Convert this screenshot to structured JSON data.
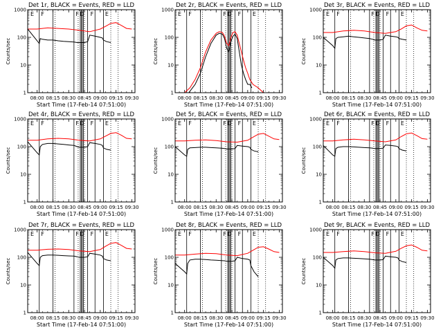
{
  "chart_data": {
    "type": "line",
    "layout": "3x3 grid",
    "shared": {
      "xlabel": "Start Time (17-Feb-14 07:51:00)",
      "ylabel": "Counts/sec",
      "x_ticks": [
        "08:00",
        "08:15",
        "08:30",
        "08:45",
        "09:00",
        "09:15",
        "09:30"
      ],
      "x_range": [
        "07:51",
        "09:33"
      ],
      "y_scale": "log",
      "y_range": [
        1,
        1000
      ],
      "y_ticks": [
        "1",
        "10",
        "100",
        "1000"
      ],
      "series_colors": {
        "events": "#000000",
        "lld": "#ff0000"
      },
      "solid_markers": [
        "08:02",
        "08:15",
        "08:35",
        "08:41",
        "08:42",
        "08:43",
        "08:44",
        "08:48",
        "08:55",
        "09:03"
      ],
      "dotted_markers": [
        "08:17",
        "08:39",
        "08:45",
        "09:10",
        "09:17"
      ],
      "marker_letters": [
        {
          "label": "E",
          "x": "07:53"
        },
        {
          "label": "F",
          "x": "08:03"
        },
        {
          "label": "F",
          "x": "08:36"
        },
        {
          "label": "D",
          "x": "08:40"
        },
        {
          "label": "F",
          "x": "08:50"
        },
        {
          "label": "E",
          "x": "09:04"
        }
      ]
    },
    "panels": [
      {
        "title": "Det 1r, BLACK = Events, RED = LLD",
        "series": [
          {
            "key": "events",
            "x": [
              "07:51",
              "08:00",
              "08:02",
              "08:03",
              "08:05",
              "08:10",
              "08:15",
              "08:20",
              "08:25",
              "08:30",
              "08:35",
              "08:38",
              "08:40",
              "08:45",
              "08:48",
              "08:50",
              "08:55",
              "09:00",
              "09:02",
              "09:03",
              "09:06",
              "09:10"
            ],
            "y": [
              200,
              75,
              60,
              90,
              85,
              80,
              80,
              75,
              72,
              70,
              68,
              65,
              65,
              65,
              70,
              120,
              110,
              100,
              95,
              80,
              70,
              65
            ]
          },
          {
            "key": "lld",
            "x": [
              "07:51",
              "08:00",
              "08:10",
              "08:20",
              "08:30",
              "08:40",
              "08:50",
              "09:00",
              "09:05",
              "09:10",
              "09:15",
              "09:20",
              "09:25",
              "09:30"
            ],
            "y": [
              200,
              200,
              220,
              210,
              200,
              180,
              160,
              200,
              250,
              320,
              340,
              270,
              210,
              200
            ]
          }
        ]
      },
      {
        "title": "Det 2r, BLACK = Events, RED = LLD",
        "series": [
          {
            "key": "events",
            "x": [
              "08:04",
              "08:10",
              "08:15",
              "08:20",
              "08:25",
              "08:30",
              "08:33",
              "08:36",
              "08:38",
              "08:40",
              "08:42",
              "08:44",
              "08:46",
              "08:48",
              "08:50",
              "08:52",
              "08:54",
              "08:56",
              "08:58",
              "09:00",
              "09:02",
              "09:04"
            ],
            "y": [
              1,
              2,
              5,
              20,
              60,
              120,
              140,
              130,
              90,
              40,
              30,
              70,
              110,
              130,
              90,
              30,
              10,
              5,
              3,
              2,
              2,
              1.5
            ]
          },
          {
            "key": "lld",
            "x": [
              "08:00",
              "08:05",
              "08:10",
              "08:15",
              "08:20",
              "08:25",
              "08:30",
              "08:33",
              "08:36",
              "08:38",
              "08:40",
              "08:42",
              "08:44",
              "08:46",
              "08:48",
              "08:50",
              "08:52",
              "08:54",
              "08:56",
              "08:58",
              "09:00",
              "09:02",
              "09:05",
              "09:10",
              "09:15"
            ],
            "y": [
              1,
              1.5,
              3,
              8,
              30,
              80,
              140,
              160,
              150,
              110,
              60,
              50,
              100,
              150,
              160,
              120,
              60,
              30,
              15,
              8,
              5,
              3,
              2,
              1.5,
              1
            ]
          }
        ]
      },
      {
        "title": "Det 3r, BLACK = Events, RED = LLD",
        "series": [
          {
            "key": "events",
            "x": [
              "07:51",
              "08:00",
              "08:02",
              "08:03",
              "08:05",
              "08:10",
              "08:15",
              "08:20",
              "08:25",
              "08:30",
              "08:35",
              "08:38",
              "08:40",
              "08:45",
              "08:48",
              "08:50",
              "08:55",
              "09:00",
              "09:02",
              "09:03",
              "09:06",
              "09:10"
            ],
            "y": [
              100,
              50,
              40,
              90,
              100,
              105,
              110,
              105,
              100,
              95,
              90,
              85,
              80,
              80,
              85,
              120,
              110,
              105,
              100,
              90,
              85,
              80
            ]
          },
          {
            "key": "lld",
            "x": [
              "07:51",
              "08:00",
              "08:10",
              "08:20",
              "08:30",
              "08:40",
              "08:50",
              "09:00",
              "09:05",
              "09:10",
              "09:15",
              "09:20",
              "09:25",
              "09:30"
            ],
            "y": [
              150,
              150,
              170,
              180,
              170,
              150,
              140,
              160,
              200,
              260,
              280,
              220,
              180,
              170
            ]
          }
        ]
      },
      {
        "title": "Det 4r, BLACK = Events, RED = LLD",
        "series": [
          {
            "key": "events",
            "x": [
              "07:51",
              "08:00",
              "08:02",
              "08:03",
              "08:05",
              "08:10",
              "08:15",
              "08:20",
              "08:25",
              "08:30",
              "08:35",
              "08:38",
              "08:40",
              "08:45",
              "08:48",
              "08:50",
              "08:55",
              "09:00",
              "09:02",
              "09:03",
              "09:06",
              "09:10"
            ],
            "y": [
              150,
              60,
              50,
              100,
              120,
              130,
              130,
              125,
              120,
              115,
              110,
              100,
              95,
              95,
              100,
              140,
              130,
              120,
              110,
              90,
              80,
              75
            ]
          },
          {
            "key": "lld",
            "x": [
              "07:51",
              "08:00",
              "08:10",
              "08:20",
              "08:30",
              "08:40",
              "08:50",
              "09:00",
              "09:05",
              "09:10",
              "09:15",
              "09:20",
              "09:25",
              "09:30"
            ],
            "y": [
              170,
              170,
              190,
              200,
              190,
              170,
              160,
              190,
              240,
              300,
              320,
              260,
              200,
              190
            ]
          }
        ]
      },
      {
        "title": "Det 5r, BLACK = Events, RED = LLD",
        "series": [
          {
            "key": "events",
            "x": [
              "07:51",
              "08:00",
              "08:02",
              "08:03",
              "08:05",
              "08:10",
              "08:15",
              "08:20",
              "08:25",
              "08:30",
              "08:35",
              "08:38",
              "08:40",
              "08:45",
              "08:48",
              "08:50",
              "08:55",
              "09:00",
              "09:02",
              "09:03",
              "09:06",
              "09:10"
            ],
            "y": [
              100,
              50,
              45,
              80,
              90,
              92,
              95,
              95,
              92,
              90,
              88,
              85,
              82,
              82,
              85,
              110,
              105,
              100,
              95,
              80,
              70,
              65
            ]
          },
          {
            "key": "lld",
            "x": [
              "07:51",
              "08:00",
              "08:10",
              "08:20",
              "08:30",
              "08:40",
              "08:50",
              "09:00",
              "09:05",
              "09:10",
              "09:15",
              "09:20",
              "09:25",
              "09:30"
            ],
            "y": [
              160,
              160,
              170,
              175,
              165,
              150,
              145,
              170,
              220,
              280,
              300,
              240,
              190,
              180
            ]
          }
        ]
      },
      {
        "title": "Det 6r, BLACK = Events, RED = LLD",
        "series": [
          {
            "key": "events",
            "x": [
              "07:51",
              "08:00",
              "08:02",
              "08:03",
              "08:05",
              "08:10",
              "08:15",
              "08:20",
              "08:25",
              "08:30",
              "08:35",
              "08:38",
              "08:40",
              "08:45",
              "08:48",
              "08:50",
              "08:55",
              "09:00",
              "09:02",
              "09:03",
              "09:06",
              "09:10"
            ],
            "y": [
              110,
              50,
              45,
              85,
              95,
              100,
              100,
              98,
              95,
              92,
              90,
              88,
              85,
              85,
              88,
              115,
              110,
              105,
              100,
              85,
              75,
              70
            ]
          },
          {
            "key": "lld",
            "x": [
              "07:51",
              "08:00",
              "08:10",
              "08:20",
              "08:30",
              "08:40",
              "08:50",
              "09:00",
              "09:05",
              "09:10",
              "09:15",
              "09:20",
              "09:25",
              "09:30"
            ],
            "y": [
              160,
              160,
              175,
              185,
              175,
              160,
              150,
              175,
              230,
              290,
              310,
              250,
              195,
              185
            ]
          }
        ]
      },
      {
        "title": "Det 7r, BLACK = Events, RED = LLD",
        "series": [
          {
            "key": "events",
            "x": [
              "07:51",
              "08:00",
              "08:02",
              "08:03",
              "08:05",
              "08:10",
              "08:15",
              "08:20",
              "08:25",
              "08:30",
              "08:35",
              "08:38",
              "08:40",
              "08:45",
              "08:48",
              "08:50",
              "08:55",
              "09:00",
              "09:02",
              "09:03",
              "09:06",
              "09:10"
            ],
            "y": [
              150,
              60,
              50,
              100,
              115,
              120,
              120,
              118,
              115,
              112,
              110,
              105,
              100,
              100,
              105,
              140,
              130,
              120,
              110,
              90,
              80,
              75
            ]
          },
          {
            "key": "lld",
            "x": [
              "07:51",
              "08:00",
              "08:10",
              "08:20",
              "08:30",
              "08:40",
              "08:50",
              "09:00",
              "09:05",
              "09:10",
              "09:15",
              "09:20",
              "09:25",
              "09:30"
            ],
            "y": [
              180,
              180,
              195,
              200,
              190,
              170,
              160,
              190,
              250,
              320,
              340,
              270,
              210,
              200
            ]
          }
        ]
      },
      {
        "title": "Det 8r, BLACK = Events, RED = LLD",
        "series": [
          {
            "key": "events",
            "x": [
              "07:51",
              "08:00",
              "08:02",
              "08:03",
              "08:05",
              "08:10",
              "08:15",
              "08:20",
              "08:25",
              "08:30",
              "08:35",
              "08:38",
              "08:40",
              "08:45",
              "08:48",
              "08:50",
              "08:55",
              "09:00",
              "09:02",
              "09:03",
              "09:06",
              "09:10"
            ],
            "y": [
              60,
              30,
              25,
              60,
              80,
              85,
              85,
              83,
              80,
              78,
              76,
              75,
              72,
              72,
              75,
              100,
              90,
              85,
              80,
              50,
              30,
              20
            ]
          },
          {
            "key": "lld",
            "x": [
              "07:51",
              "08:00",
              "08:10",
              "08:20",
              "08:30",
              "08:40",
              "08:50",
              "09:00",
              "09:05",
              "09:10",
              "09:15",
              "09:20",
              "09:25",
              "09:30"
            ],
            "y": [
              120,
              120,
              130,
              140,
              135,
              120,
              115,
              140,
              180,
              230,
              240,
              200,
              160,
              150
            ]
          }
        ]
      },
      {
        "title": "Det 9r, BLACK = Events, RED = LLD",
        "series": [
          {
            "key": "events",
            "x": [
              "07:51",
              "08:00",
              "08:02",
              "08:03",
              "08:05",
              "08:10",
              "08:15",
              "08:20",
              "08:25",
              "08:30",
              "08:35",
              "08:38",
              "08:40",
              "08:45",
              "08:48",
              "08:50",
              "08:55",
              "09:00",
              "09:02",
              "09:03",
              "09:06",
              "09:10"
            ],
            "y": [
              100,
              50,
              40,
              80,
              90,
              95,
              95,
              92,
              90,
              88,
              85,
              82,
              80,
              80,
              82,
              110,
              105,
              100,
              95,
              80,
              70,
              65
            ]
          },
          {
            "key": "lld",
            "x": [
              "07:51",
              "08:00",
              "08:10",
              "08:20",
              "08:30",
              "08:40",
              "08:50",
              "09:00",
              "09:05",
              "09:10",
              "09:15",
              "09:20",
              "09:25",
              "09:30"
            ],
            "y": [
              150,
              150,
              160,
              170,
              160,
              145,
              140,
              165,
              210,
              260,
              280,
              230,
              180,
              170
            ]
          }
        ]
      }
    ]
  }
}
